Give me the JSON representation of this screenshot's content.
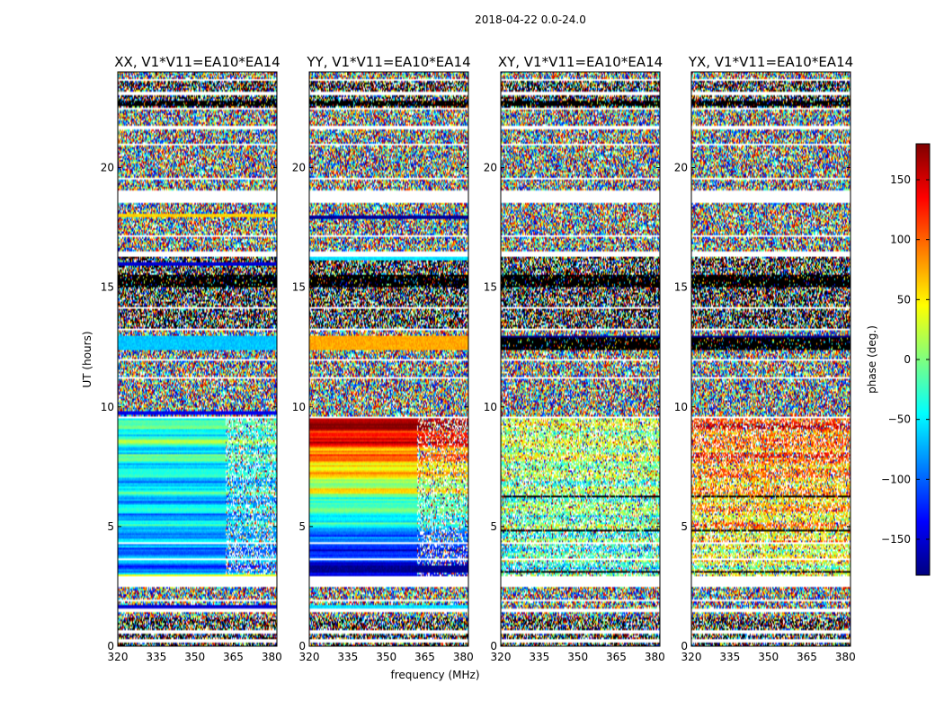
{
  "figure": {
    "suptitle": "2018-04-22 0.0-24.0",
    "xlabel": "frequency (MHz)",
    "ylabel": "UT (hours)",
    "colorbar_label": "phase (deg.)"
  },
  "colormap": {
    "name": "jet",
    "stops": [
      "#00007f",
      "#0000ff",
      "#007fff",
      "#00ffff",
      "#7fff7f",
      "#ffff00",
      "#ff7f00",
      "#ff0000",
      "#7f0000"
    ]
  },
  "chart_data": {
    "type": "heatmap",
    "x_range": [
      320,
      382
    ],
    "y_range": [
      0,
      24
    ],
    "x_ticks": [
      320,
      335,
      350,
      365,
      380
    ],
    "y_ticks": [
      0,
      5,
      10,
      15,
      20
    ],
    "colorbar": {
      "range": [
        -180,
        180
      ],
      "ticks": [
        -150,
        -100,
        -50,
        0,
        50,
        100,
        150
      ]
    },
    "panels": [
      {
        "title": "XX, V1*V11=EA10*EA14",
        "structured_segments": [
          {
            "ut": [
              2.9,
              9.5
            ],
            "phase_start": -90,
            "phase_end": -20,
            "freq_noise_above": 362
          }
        ],
        "solid_bands": [
          {
            "ut": [
              12.35,
              12.95
            ],
            "phase": -65
          },
          {
            "ut": [
              2.85,
              3.0
            ],
            "phase": 40
          },
          {
            "ut": [
              1.6,
              1.72
            ],
            "phase": -150
          },
          {
            "ut": [
              15.9,
              16.05
            ],
            "phase": -150
          },
          {
            "ut": [
              17.9,
              18.05
            ],
            "phase": 60
          },
          {
            "ut": [
              9.7,
              9.85
            ],
            "phase": -140
          }
        ]
      },
      {
        "title": "YY, V1*V11=EA10*EA14",
        "structured_segments": [
          {
            "ut": [
              2.9,
              9.5
            ],
            "phase_start": -170,
            "phase_end": 170,
            "freq_noise_above": 362
          }
        ],
        "solid_bands": [
          {
            "ut": [
              12.35,
              12.95
            ],
            "phase": 75
          },
          {
            "ut": [
              3.1,
              3.4
            ],
            "phase": -175
          },
          {
            "ut": [
              16.1,
              16.25
            ],
            "phase": -55
          },
          {
            "ut": [
              17.85,
              18.0
            ],
            "phase": -170
          },
          {
            "ut": [
              1.6,
              1.72
            ],
            "phase": -55
          }
        ]
      },
      {
        "title": "XY, V1*V11=EA10*EA14",
        "structured_segments": [
          {
            "ut": [
              2.9,
              9.5
            ],
            "phase_start": -40,
            "phase_end": 30,
            "freq_noise_above": 320
          }
        ],
        "solid_bands": [
          {
            "ut": [
              12.35,
              12.95
            ],
            "phase": -180
          }
        ]
      },
      {
        "title": "YX, V1*V11=EA10*EA14",
        "structured_segments": [
          {
            "ut": [
              2.9,
              9.5
            ],
            "phase_start": 20,
            "phase_end": 120,
            "freq_noise_above": 320
          }
        ],
        "solid_bands": [
          {
            "ut": [
              12.35,
              12.95
            ],
            "phase": -180
          }
        ]
      }
    ],
    "flagged_gaps_ut": [
      [
        0.15,
        0.3
      ],
      [
        0.55,
        0.68
      ],
      [
        1.45,
        1.55
      ],
      [
        1.9,
        1.98
      ],
      [
        2.45,
        2.9
      ],
      [
        3.6,
        3.68
      ],
      [
        4.3,
        4.36
      ],
      [
        5.3,
        5.36
      ],
      [
        7.4,
        7.46
      ],
      [
        9.5,
        9.62
      ],
      [
        11.2,
        11.26
      ],
      [
        11.9,
        12.0
      ],
      [
        13.2,
        13.28
      ],
      [
        14.1,
        14.16
      ],
      [
        16.3,
        16.5
      ],
      [
        17.1,
        17.18
      ],
      [
        18.55,
        19.05
      ],
      [
        19.5,
        19.6
      ],
      [
        20.9,
        21.0
      ],
      [
        21.6,
        21.75
      ],
      [
        22.4,
        22.52
      ],
      [
        23.05,
        23.15
      ],
      [
        23.6,
        23.68
      ]
    ],
    "black_rows_ut": [
      [
        12.4,
        12.9
      ],
      [
        15.0,
        15.5
      ],
      [
        22.6,
        22.8
      ],
      [
        4.8,
        4.9
      ],
      [
        6.2,
        6.28
      ],
      [
        3.05,
        3.12
      ]
    ],
    "sparse_noise_ut": [
      [
        13.3,
        16.3
      ],
      [
        0.0,
        1.2
      ],
      [
        22.5,
        23.6
      ]
    ]
  }
}
